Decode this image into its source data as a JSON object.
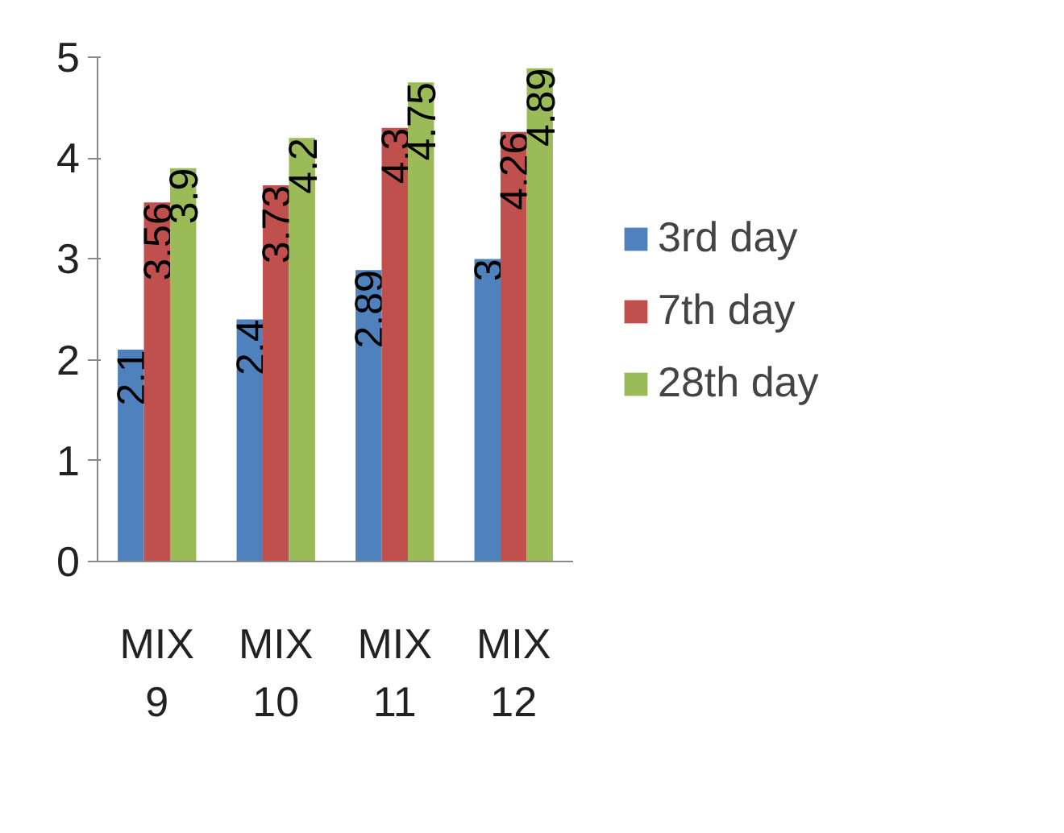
{
  "chart_data": {
    "type": "bar",
    "categories": [
      "MIX 9",
      "MIX 10",
      "MIX 11",
      "MIX 12"
    ],
    "series": [
      {
        "name": "3rd day",
        "color": "#4f81bd",
        "values": [
          2.1,
          2.4,
          2.89,
          3
        ]
      },
      {
        "name": "7th day",
        "color": "#c0504d",
        "values": [
          3.56,
          3.73,
          4.3,
          4.26
        ]
      },
      {
        "name": "28th day",
        "color": "#9bbb59",
        "values": [
          3.9,
          4.2,
          4.75,
          4.89
        ]
      }
    ],
    "ylim": [
      0,
      5
    ],
    "yticks": [
      0,
      1,
      2,
      3,
      4,
      5
    ],
    "grid": false,
    "legend": "right",
    "data_labels": true
  }
}
